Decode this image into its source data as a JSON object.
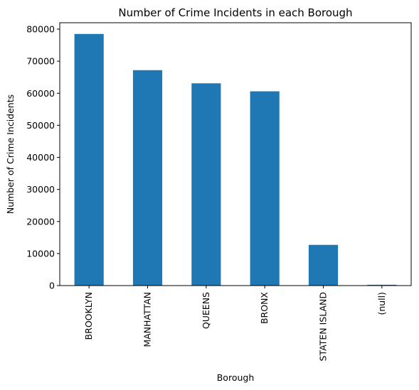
{
  "chart_data": {
    "type": "bar",
    "title": "Number of Crime Incidents in each Borough",
    "xlabel": "Borough",
    "ylabel": "Number of Crime Incidents",
    "categories": [
      "BROOKLYN",
      "MANHATTAN",
      "QUEENS",
      "BRONX",
      "STATEN ISLAND",
      "(null)"
    ],
    "values": [
      78500,
      67200,
      63100,
      60600,
      12700,
      250
    ],
    "ylim": [
      0,
      82000
    ],
    "yticks": [
      0,
      10000,
      20000,
      30000,
      40000,
      50000,
      60000,
      70000,
      80000
    ],
    "bar_color": "#1f77b4",
    "grid": false,
    "legend": "none"
  }
}
